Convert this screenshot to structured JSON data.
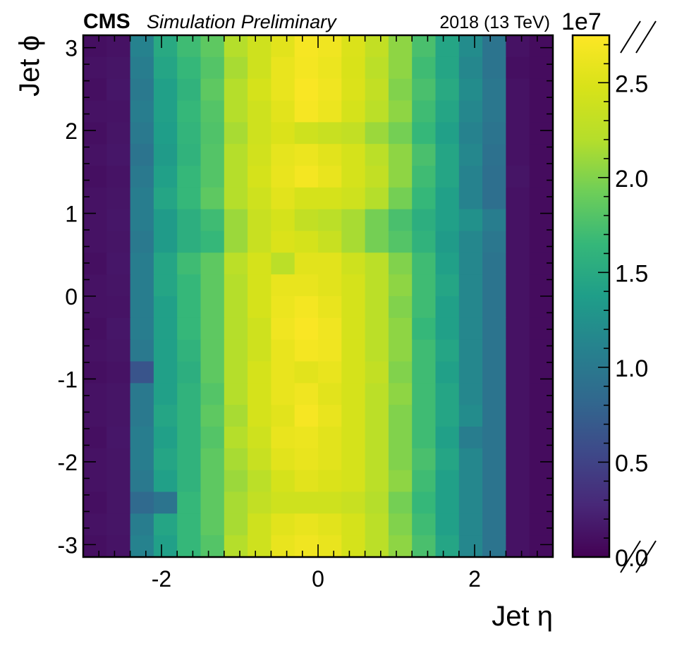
{
  "header": {
    "experiment": "CMS",
    "status": "Simulation Preliminary",
    "lumi": "2018 (13 TeV)"
  },
  "chart_data": {
    "type": "heatmap",
    "title": "",
    "xlabel": "Jet η",
    "ylabel": "Jet ϕ",
    "xlim": [
      -3.0,
      3.0
    ],
    "ylim": [
      -3.15,
      3.15
    ],
    "x_bin_edges": [
      -3.0,
      -2.7,
      -2.4,
      -2.1,
      -1.8,
      -1.5,
      -1.2,
      -0.9,
      -0.6,
      -0.3,
      0.0,
      0.3,
      0.6,
      0.9,
      1.2,
      1.5,
      1.8,
      2.1,
      2.4,
      2.7,
      3.0
    ],
    "n_phi_bins": 24,
    "x_ticks": [
      "-2",
      "0",
      "2"
    ],
    "x_tick_values": [
      -2,
      0,
      2
    ],
    "y_ticks": [
      "3",
      "2",
      "1",
      "0",
      "-1",
      "-2",
      "-3"
    ],
    "y_tick_values": [
      3,
      2,
      1,
      0,
      -1,
      -2,
      -3
    ],
    "colorbar": {
      "min": 0.0,
      "max": 2.75,
      "multiplier_label": "1e7",
      "ticks": [
        "0.0",
        "0.5",
        "1.0",
        "1.5",
        "2.0",
        "2.5"
      ],
      "tick_values": [
        0.0,
        0.5,
        1.0,
        1.5,
        2.0,
        2.5
      ],
      "colormap": "viridis"
    },
    "values_note": "z values in units of 1e7; rows ordered from phi = +3.14 (top) to phi = -3.14 (bottom); columns from eta = -3.0 to eta = 3.0",
    "z": [
      [
        0.1,
        0.12,
        1.1,
        1.5,
        1.7,
        1.85,
        2.2,
        2.4,
        2.55,
        2.7,
        2.65,
        2.5,
        2.3,
        2.05,
        1.75,
        1.45,
        1.2,
        0.95,
        0.12,
        0.08
      ],
      [
        0.12,
        0.14,
        1.05,
        1.45,
        1.65,
        1.8,
        2.15,
        2.4,
        2.6,
        2.68,
        2.62,
        2.48,
        2.25,
        2.05,
        1.7,
        1.45,
        1.15,
        0.95,
        0.1,
        0.08
      ],
      [
        0.1,
        0.15,
        1.0,
        1.4,
        1.6,
        1.85,
        2.2,
        2.45,
        2.6,
        2.72,
        2.65,
        2.5,
        2.3,
        2.0,
        1.75,
        1.5,
        1.2,
        0.98,
        0.12,
        0.08
      ],
      [
        0.12,
        0.13,
        1.05,
        1.4,
        1.65,
        1.8,
        2.2,
        2.4,
        2.55,
        2.7,
        2.62,
        2.45,
        2.25,
        2.05,
        1.7,
        1.45,
        1.15,
        0.98,
        0.12,
        0.08
      ],
      [
        0.1,
        0.14,
        1.0,
        1.38,
        1.62,
        1.78,
        2.15,
        2.4,
        2.5,
        2.4,
        2.35,
        2.3,
        2.1,
        1.95,
        1.65,
        1.4,
        1.1,
        0.95,
        0.12,
        0.08
      ],
      [
        0.12,
        0.15,
        0.95,
        1.35,
        1.6,
        1.8,
        2.2,
        2.42,
        2.58,
        2.62,
        2.55,
        2.45,
        2.25,
        2.05,
        1.75,
        1.45,
        1.15,
        0.92,
        0.12,
        0.08
      ],
      [
        0.1,
        0.13,
        1.0,
        1.4,
        1.65,
        1.8,
        2.2,
        2.45,
        2.6,
        2.68,
        2.6,
        2.45,
        2.3,
        2.05,
        1.7,
        1.45,
        1.1,
        0.9,
        0.14,
        0.08
      ],
      [
        0.12,
        0.14,
        1.05,
        1.45,
        1.65,
        1.85,
        2.2,
        2.4,
        2.55,
        2.45,
        2.45,
        2.4,
        2.2,
        1.95,
        1.65,
        1.4,
        1.1,
        0.9,
        0.12,
        0.08
      ],
      [
        0.12,
        0.15,
        1.05,
        1.35,
        1.55,
        1.7,
        2.1,
        2.35,
        2.45,
        2.3,
        2.25,
        2.15,
        1.95,
        1.75,
        1.55,
        1.4,
        1.25,
        1.05,
        0.12,
        0.08
      ],
      [
        0.12,
        0.14,
        1.0,
        1.35,
        1.55,
        1.65,
        2.1,
        2.35,
        2.5,
        2.45,
        2.35,
        2.15,
        1.95,
        1.8,
        1.6,
        1.35,
        1.15,
        0.98,
        0.12,
        0.08
      ],
      [
        0.1,
        0.15,
        1.05,
        1.45,
        1.7,
        1.85,
        2.25,
        2.45,
        2.25,
        2.55,
        2.55,
        2.4,
        2.25,
        2.0,
        1.7,
        1.4,
        1.15,
        0.95,
        0.12,
        0.08
      ],
      [
        0.12,
        0.14,
        1.05,
        1.45,
        1.65,
        1.85,
        2.2,
        2.45,
        2.6,
        2.6,
        2.55,
        2.45,
        2.25,
        2.05,
        1.7,
        1.45,
        1.15,
        0.95,
        0.12,
        0.08
      ],
      [
        0.12,
        0.13,
        1.05,
        1.4,
        1.65,
        1.85,
        2.2,
        2.45,
        2.62,
        2.68,
        2.6,
        2.45,
        2.25,
        2.0,
        1.7,
        1.4,
        1.15,
        0.95,
        0.12,
        0.08
      ],
      [
        0.1,
        0.15,
        1.05,
        1.4,
        1.65,
        1.85,
        2.2,
        2.4,
        2.65,
        2.72,
        2.65,
        2.45,
        2.25,
        2.05,
        1.65,
        1.4,
        1.15,
        0.95,
        0.12,
        0.08
      ],
      [
        0.12,
        0.14,
        1.0,
        1.4,
        1.6,
        1.85,
        2.2,
        2.4,
        2.6,
        2.68,
        2.65,
        2.45,
        2.25,
        2.05,
        1.7,
        1.45,
        1.15,
        0.95,
        0.12,
        0.08
      ],
      [
        0.1,
        0.12,
        0.65,
        1.4,
        1.55,
        1.85,
        2.2,
        2.45,
        2.6,
        2.55,
        2.6,
        2.45,
        2.3,
        2.0,
        1.7,
        1.4,
        1.15,
        0.95,
        0.12,
        0.08
      ],
      [
        0.12,
        0.14,
        1.0,
        1.4,
        1.6,
        1.8,
        2.2,
        2.45,
        2.6,
        2.65,
        2.55,
        2.45,
        2.25,
        2.05,
        1.7,
        1.45,
        1.15,
        0.95,
        0.12,
        0.08
      ],
      [
        0.12,
        0.14,
        1.0,
        1.45,
        1.6,
        1.85,
        2.15,
        2.45,
        2.55,
        2.7,
        2.6,
        2.45,
        2.25,
        2.0,
        1.7,
        1.45,
        1.2,
        0.95,
        0.12,
        0.08
      ],
      [
        0.1,
        0.15,
        1.05,
        1.4,
        1.6,
        1.8,
        2.2,
        2.4,
        2.6,
        2.62,
        2.55,
        2.45,
        2.25,
        2.0,
        1.7,
        1.4,
        1.05,
        0.95,
        0.12,
        0.08
      ],
      [
        0.12,
        0.14,
        1.05,
        1.45,
        1.6,
        1.85,
        2.15,
        2.35,
        2.55,
        2.6,
        2.55,
        2.45,
        2.25,
        2.0,
        1.75,
        1.45,
        1.15,
        0.95,
        0.12,
        0.08
      ],
      [
        0.12,
        0.14,
        1.0,
        1.4,
        1.6,
        1.85,
        2.1,
        2.25,
        2.45,
        2.55,
        2.5,
        2.45,
        2.25,
        2.05,
        1.7,
        1.4,
        1.15,
        0.95,
        0.12,
        0.08
      ],
      [
        0.1,
        0.14,
        0.85,
        0.95,
        1.65,
        1.85,
        2.15,
        2.3,
        2.4,
        2.4,
        2.4,
        2.35,
        2.2,
        1.95,
        1.65,
        1.4,
        1.15,
        0.95,
        0.12,
        0.08
      ],
      [
        0.12,
        0.14,
        1.05,
        1.45,
        1.65,
        1.85,
        2.15,
        2.4,
        2.55,
        2.6,
        2.55,
        2.45,
        2.25,
        2.0,
        1.7,
        1.4,
        1.15,
        0.95,
        0.12,
        0.08
      ],
      [
        0.1,
        0.13,
        1.1,
        1.4,
        1.65,
        1.8,
        2.2,
        2.4,
        2.6,
        2.65,
        2.6,
        2.45,
        2.25,
        2.05,
        1.75,
        1.45,
        1.15,
        0.95,
        0.12,
        0.08
      ]
    ]
  }
}
